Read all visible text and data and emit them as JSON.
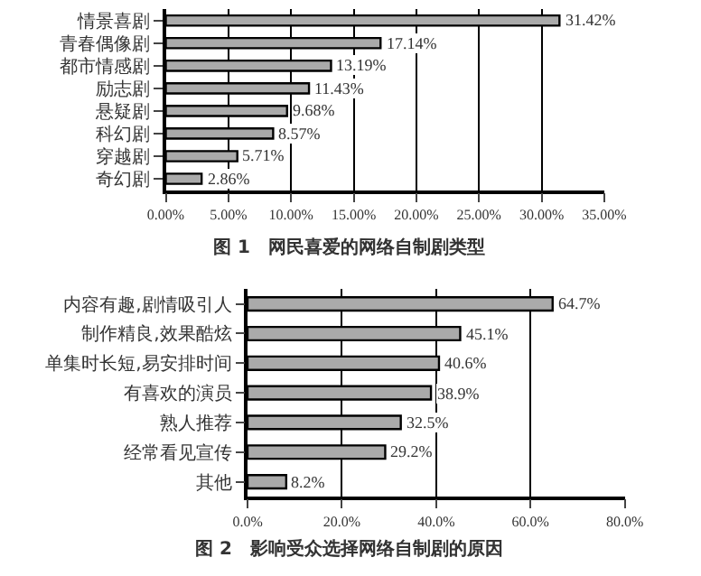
{
  "chart_data": [
    {
      "type": "bar",
      "orientation": "horizontal",
      "title": "图 1　网民喜爱的网络自制剧类型",
      "categories": [
        "情景喜剧",
        "青春偶像剧",
        "都市情感剧",
        "励志剧",
        "悬疑剧",
        "科幻剧",
        "穿越剧",
        "奇幻剧"
      ],
      "values": [
        31.42,
        17.14,
        13.19,
        11.43,
        9.68,
        8.57,
        5.71,
        2.86
      ],
      "value_labels": [
        "31.42%",
        "17.14%",
        "13.19%",
        "11.43%",
        "9.68%",
        "8.57%",
        "5.71%",
        "2.86%"
      ],
      "color": "#aaaaaa",
      "xlim": [
        0,
        35
      ],
      "xticks": [
        {
          "value": 0,
          "label": "0.00%"
        },
        {
          "value": 5,
          "label": "5.00%"
        },
        {
          "value": 10,
          "label": "10.00%"
        },
        {
          "value": 15,
          "label": "15.00%"
        },
        {
          "value": 20,
          "label": "20.00%"
        },
        {
          "value": 25,
          "label": "25.00%"
        },
        {
          "value": 30,
          "label": "30.00%"
        },
        {
          "value": 35,
          "label": "35.00%"
        }
      ],
      "grid": "x"
    },
    {
      "type": "bar",
      "orientation": "horizontal",
      "title": "图 2　影响受众选择网络自制剧的原因",
      "categories": [
        "内容有趣,剧情吸引人",
        "制作精良,效果酷炫",
        "单集时长短,易安排时间",
        "有喜欢的演员",
        "熟人推荐",
        "经常看见宣传",
        "其他"
      ],
      "values": [
        64.7,
        45.1,
        40.6,
        38.9,
        32.5,
        29.2,
        8.2
      ],
      "value_labels": [
        "64.7%",
        "45.1%",
        "40.6%",
        "38.9%",
        "32.5%",
        "29.2%",
        "8.2%"
      ],
      "color": "#aaaaaa",
      "xlim": [
        0,
        80
      ],
      "xticks": [
        {
          "value": 0,
          "label": "0.0%"
        },
        {
          "value": 20,
          "label": "20.0%"
        },
        {
          "value": 40,
          "label": "40.0%"
        },
        {
          "value": 60,
          "label": "60.0%"
        },
        {
          "value": 80,
          "label": "80.0%"
        }
      ],
      "grid": "x"
    }
  ]
}
